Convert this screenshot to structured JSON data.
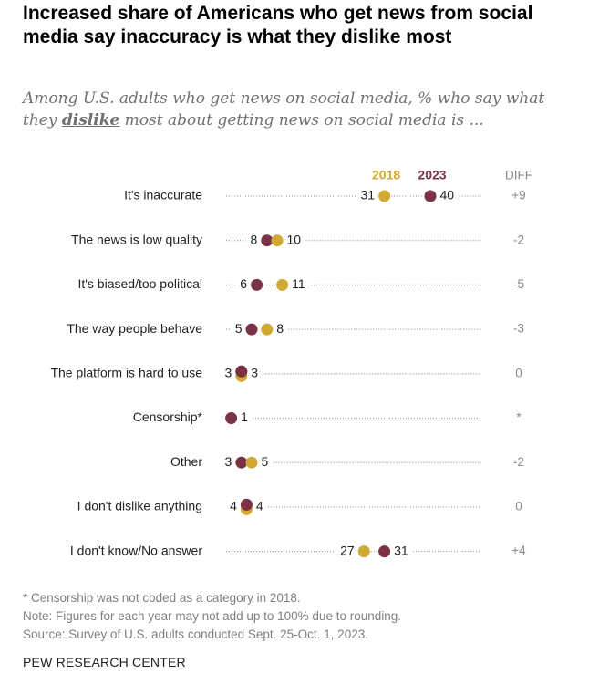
{
  "title": "Increased share of Americans who get news from social media say inaccuracy is what they dislike most",
  "subtitle": {
    "before": "Among U.S. adults who get news on social media, % who say what they ",
    "emphasis": "dislike",
    "after": " most about getting news on social media is ..."
  },
  "colors": {
    "y2018": "#D1A935",
    "y2023": "#7A3344",
    "label": "#222222",
    "diff": "#8A8A8A",
    "dots": "#A0A0A0"
  },
  "chart_data": {
    "type": "dot",
    "legend": [
      "2018",
      "2023"
    ],
    "diff_header": "DIFF",
    "xlim": [
      0,
      50
    ],
    "categories": [
      "It's inaccurate",
      "The news is low quality",
      "It's biased/too political",
      "The way people behave",
      "The platform is hard to use",
      "Censorship*",
      "Other",
      "I don't dislike anything",
      "I don't know/No answer"
    ],
    "series": [
      {
        "name": "2018",
        "values": [
          31,
          10,
          11,
          8,
          3,
          null,
          5,
          4,
          27
        ]
      },
      {
        "name": "2023",
        "values": [
          40,
          8,
          6,
          5,
          3,
          1,
          3,
          4,
          31
        ]
      }
    ],
    "diff": [
      "+9",
      "-2",
      "-5",
      "-3",
      "0",
      "*",
      "-2",
      "0",
      "+4"
    ]
  },
  "notes": [
    "* Censorship was not coded as a category in 2018.",
    "Note: Figures for each year may not add up to 100% due to rounding.",
    "Source: Survey of U.S. adults conducted Sept. 25-Oct. 1, 2023."
  ],
  "source_org": "PEW RESEARCH CENTER"
}
